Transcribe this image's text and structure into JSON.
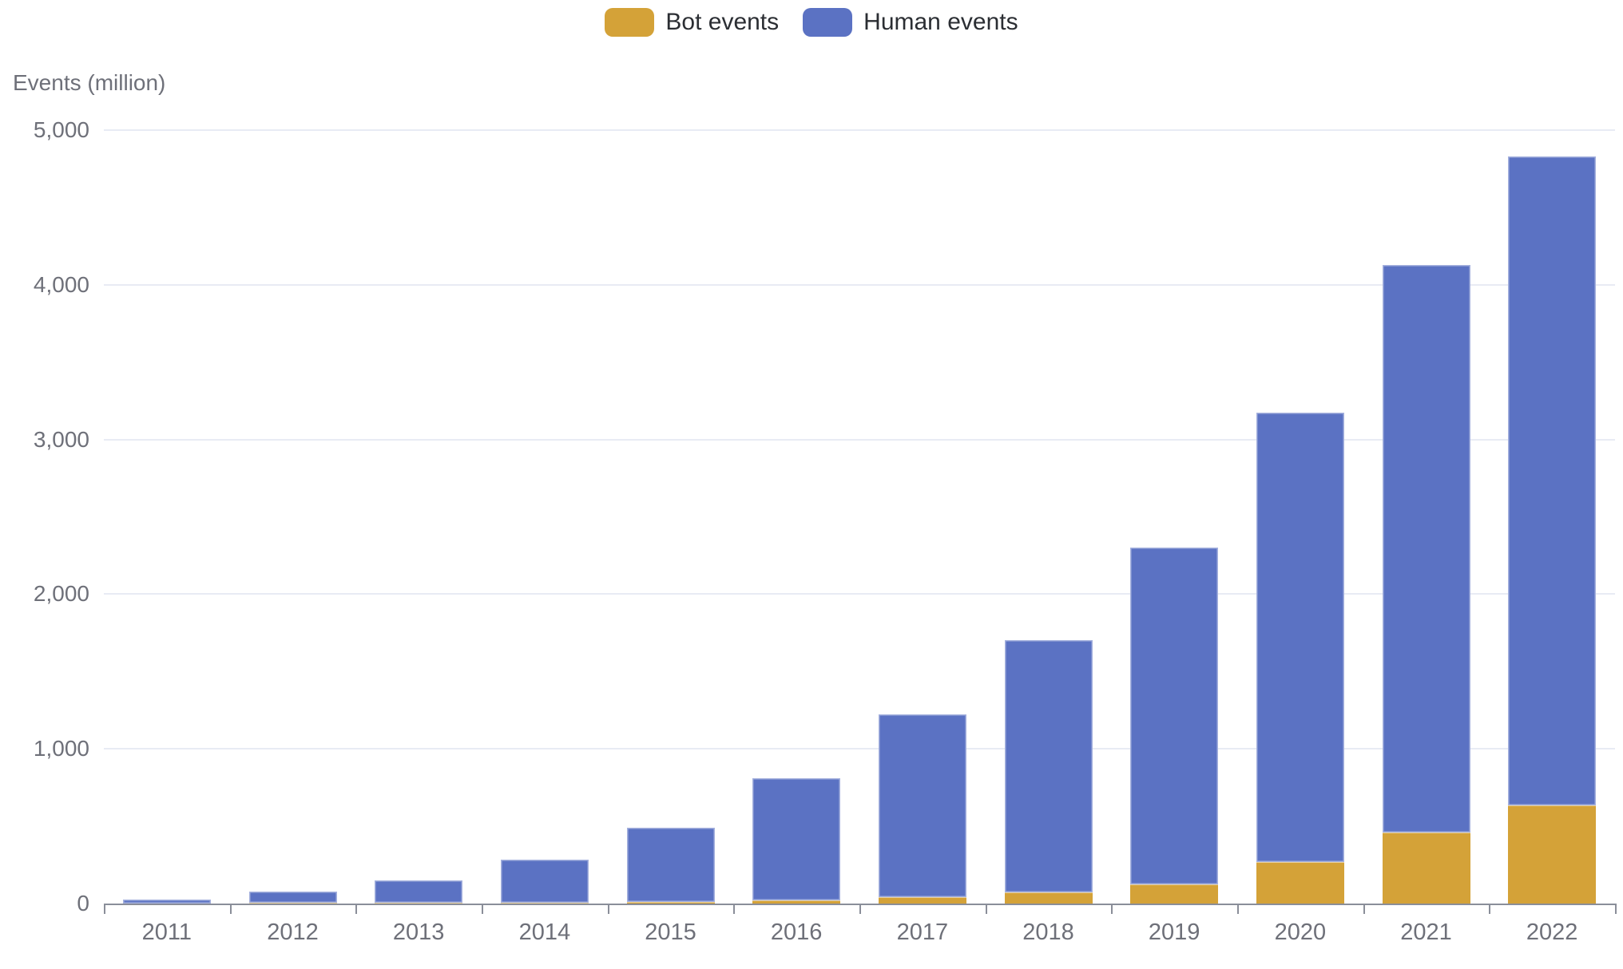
{
  "legend": {
    "items": [
      {
        "label": "Bot events",
        "color": "#D4A238"
      },
      {
        "label": "Human events",
        "color": "#5B72C3"
      }
    ]
  },
  "colors": {
    "bot": "#D4A238",
    "human": "#5B72C3",
    "grid": "#E8EBF4",
    "axis": "#8A8E99",
    "axis_text": "#6E7079",
    "legend_text": "#2b2e33"
  },
  "chart_data": {
    "type": "bar",
    "stacked": true,
    "title": "",
    "xlabel": "",
    "ylabel": "Events (million)",
    "categories": [
      "2011",
      "2012",
      "2013",
      "2014",
      "2015",
      "2016",
      "2017",
      "2018",
      "2019",
      "2020",
      "2021",
      "2022"
    ],
    "series": [
      {
        "name": "Bot events",
        "color": "#D4A238",
        "values": [
          0,
          1,
          3,
          6,
          12,
          22,
          42,
          70,
          123,
          267,
          458,
          636
        ]
      },
      {
        "name": "Human events",
        "color": "#5B72C3",
        "values": [
          28,
          71,
          147,
          279,
          478,
          788,
          1183,
          1630,
          2180,
          2903,
          3667,
          4194
        ]
      }
    ],
    "totals": [
      28,
      72,
      150,
      285,
      490,
      810,
      1225,
      1700,
      2303,
      3170,
      4125,
      4830
    ],
    "ylim": [
      0,
      5000
    ],
    "yticks": [
      0,
      1000,
      2000,
      3000,
      4000,
      5000
    ],
    "ytick_labels": [
      "0",
      "1,000",
      "2,000",
      "3,000",
      "4,000",
      "5,000"
    ],
    "grid": true,
    "legend_position": "top"
  }
}
